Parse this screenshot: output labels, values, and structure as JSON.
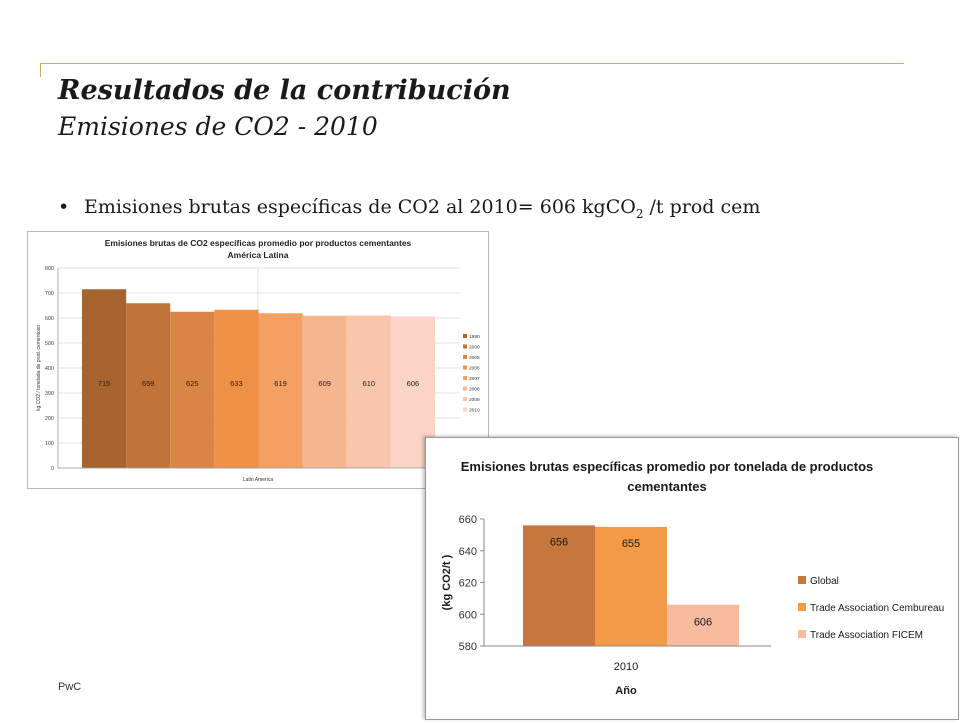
{
  "slide": {
    "title": "Resultados de la contribución",
    "subtitle": "Emisiones de CO2 - 2010",
    "bullet": {
      "dot": "•",
      "text_before": "Emisiones brutas específicas de CO2 al 2010= 606 kgCO",
      "sub": "2",
      "text_after": " /t prod cem"
    },
    "footer": "PwC"
  },
  "colors": {
    "rule": "#c9a86a",
    "text": "#1a1a1a"
  },
  "chart_data": [
    {
      "type": "bar",
      "title": "Emisiones brutas de CO2 específicas promedio por productos cementantes",
      "subtitle": "América Latina",
      "xlabel": "Latin America",
      "ylabel": "kg CO2 / tonelada de prod. cementoso",
      "ylim": [
        0,
        800
      ],
      "yticks": [
        0,
        100,
        200,
        300,
        400,
        500,
        600,
        700,
        800
      ],
      "grid": true,
      "legend_position": "right",
      "series": [
        {
          "name": "1990",
          "value": 715,
          "label": "715",
          "color": "#a8642f"
        },
        {
          "name": "2000",
          "value": 659,
          "label": "659",
          "color": "#c2733a"
        },
        {
          "name": "2005",
          "value": 625,
          "label": "625",
          "color": "#d98545"
        },
        {
          "name": "2006",
          "value": 633,
          "label": "633",
          "color": "#ee9146"
        },
        {
          "name": "2007",
          "value": 619,
          "label": "619",
          "color": "#f4a063"
        },
        {
          "name": "2008",
          "value": 609,
          "label": "609",
          "color": "#f6b48f"
        },
        {
          "name": "2009",
          "value": 610,
          "label": "610",
          "color": "#f8c6ad"
        },
        {
          "name": "2010",
          "value": 606,
          "label": "606",
          "color": "#fad5c6"
        }
      ]
    },
    {
      "type": "bar",
      "title": "Emisiones brutas específicas promedio por tonelada de productos cementantes",
      "title_lines": [
        "Emisiones brutas específicas promedio por tonelada de productos",
        "cementantes"
      ],
      "categories": [
        "2010"
      ],
      "xlabel": "Año",
      "ylabel": "(kg CO2/t )",
      "ylim": [
        580,
        660
      ],
      "yticks": [
        580,
        600,
        620,
        640,
        660
      ],
      "grid": false,
      "legend_position": "right",
      "series": [
        {
          "name": "Global",
          "value": 656,
          "label": "656",
          "color": "#c8773c"
        },
        {
          "name": "Trade Association Cembureau",
          "value": 655,
          "label": "655",
          "color": "#f39a48"
        },
        {
          "name": "Trade Association FICEM",
          "value": 606,
          "label": "606",
          "color": "#f9bb9d"
        }
      ]
    }
  ]
}
